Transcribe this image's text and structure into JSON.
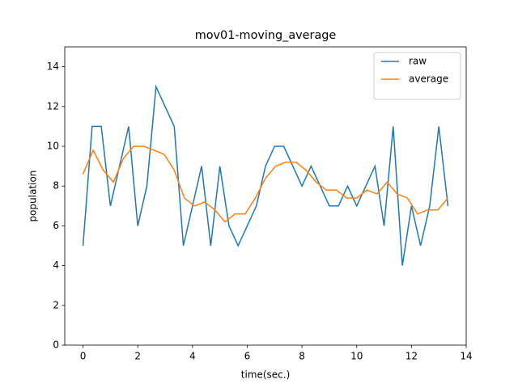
{
  "chart_data": {
    "type": "line",
    "title": "mov01-moving_average",
    "xlabel": "time(sec.)",
    "ylabel": "population",
    "series": [
      {
        "name": "raw",
        "color": "#1f77b4",
        "x": [
          0,
          0.333,
          0.667,
          1,
          1.333,
          1.667,
          2,
          2.333,
          2.667,
          3,
          3.333,
          3.667,
          4,
          4.333,
          4.667,
          5,
          5.333,
          5.667,
          6,
          6.333,
          6.667,
          7,
          7.333,
          7.667,
          8,
          8.333,
          8.667,
          9,
          9.333,
          9.667,
          10,
          10.333,
          10.667,
          11,
          11.333,
          11.667,
          12,
          12.333,
          12.667,
          13,
          13.333
        ],
        "values": [
          5,
          11,
          11,
          7,
          9,
          11,
          6,
          8,
          13,
          12,
          11,
          5,
          7,
          9,
          5,
          9,
          6,
          5,
          6,
          7,
          9,
          10,
          10,
          9,
          8,
          9,
          8,
          7,
          7,
          8,
          7,
          8,
          9,
          6,
          11,
          4,
          7,
          5,
          7,
          11,
          7
        ]
      },
      {
        "name": "average",
        "color": "#ff7f0e",
        "x": [
          0,
          0.37,
          0.741,
          1.111,
          1.481,
          1.852,
          2.222,
          2.593,
          2.963,
          3.333,
          3.704,
          4.074,
          4.444,
          4.815,
          5.185,
          5.556,
          5.926,
          6.296,
          6.667,
          7.037,
          7.407,
          7.778,
          8.148,
          8.519,
          8.889,
          9.259,
          9.63,
          10,
          10.37,
          10.741,
          11.111,
          11.481,
          11.852,
          12.222,
          12.593,
          12.963,
          13.333
        ],
        "values": [
          8.6,
          9.8,
          8.8,
          8.2,
          9.4,
          10,
          10,
          9.8,
          9.6,
          8.8,
          7.4,
          7.0,
          7.2,
          6.8,
          6.2,
          6.6,
          6.6,
          7.4,
          8.4,
          9.0,
          9.2,
          9.2,
          8.8,
          8.2,
          7.8,
          7.8,
          7.4,
          7.4,
          7.8,
          7.6,
          8.2,
          7.6,
          7.4,
          6.6,
          6.8,
          6.8,
          7.4
        ]
      }
    ],
    "xlim": [
      -0.667,
      14
    ],
    "xticks": [
      0,
      2,
      4,
      6,
      8,
      10,
      12,
      14
    ],
    "ylim": [
      0,
      15
    ],
    "yticks": [
      0,
      2,
      4,
      6,
      8,
      10,
      12,
      14
    ],
    "legend": "upper right"
  }
}
